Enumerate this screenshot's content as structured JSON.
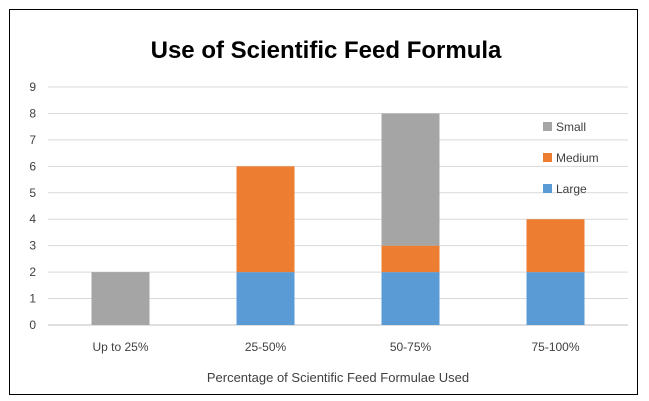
{
  "chart_data": {
    "type": "bar",
    "stacked": true,
    "title": "Use of Scientific Feed Formula",
    "xlabel": "Percentage of Scientific Feed Formulae Used",
    "ylabel": "",
    "categories": [
      "Up to 25%",
      "25-50%",
      "50-75%",
      "75-100%"
    ],
    "ylim": [
      0,
      9
    ],
    "yticks": [
      "0",
      "1",
      "2",
      "3",
      "4",
      "5",
      "6",
      "7",
      "8",
      "9"
    ],
    "grid": true,
    "legend_position": "right",
    "series": [
      {
        "name": "Large",
        "color": "#5b9bd5",
        "values": [
          0,
          2,
          2,
          2
        ]
      },
      {
        "name": "Medium",
        "color": "#ed7d31",
        "values": [
          0,
          4,
          1,
          2
        ]
      },
      {
        "name": "Small",
        "color": "#a5a5a5",
        "values": [
          2,
          0,
          5,
          0
        ]
      }
    ],
    "legend_order": [
      "Small",
      "Medium",
      "Large"
    ]
  }
}
